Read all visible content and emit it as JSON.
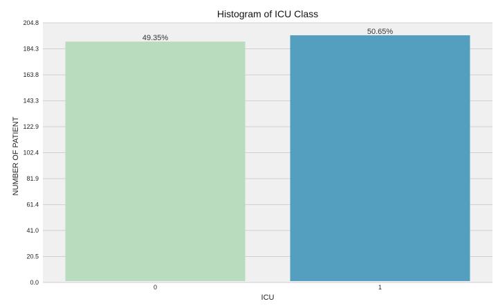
{
  "chart_data": {
    "type": "bar",
    "title": "Histogram of ICU Class",
    "xlabel": "ICU",
    "ylabel": "NUMBER OF PATIENT",
    "categories": [
      "0",
      "1"
    ],
    "values": [
      190,
      195
    ],
    "data_labels": [
      "49.35%",
      "50.65%"
    ],
    "ylim": [
      0,
      204.8
    ],
    "yticks": [
      "0.0",
      "20.5",
      "41.0",
      "61.4",
      "81.9",
      "102.4",
      "122.9",
      "143.3",
      "163.8",
      "184.3",
      "204.8"
    ],
    "grid": true,
    "colors": {
      "bars": [
        "#b8dcbd",
        "#549fc0"
      ],
      "background": "#f0f0f0",
      "grid": "#cfcfcf"
    }
  }
}
